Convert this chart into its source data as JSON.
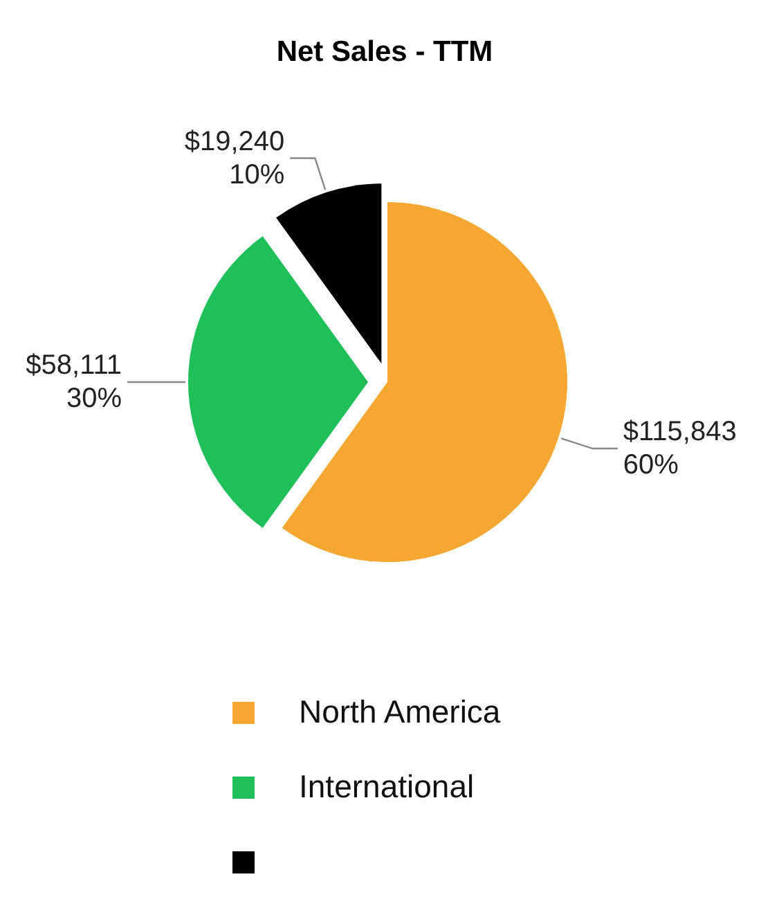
{
  "chart_data": {
    "type": "pie",
    "title": "Net Sales - TTM",
    "categories": [
      "North America",
      "International",
      null
    ],
    "values": [
      115843,
      58111,
      19240
    ],
    "colors": [
      "#f5a731",
      "#1fbf5a",
      "#000000"
    ],
    "value_labels": [
      "$115,843\n60%",
      "$58,111\n30%",
      "$19,240\n10%"
    ],
    "legend": "bottom"
  }
}
